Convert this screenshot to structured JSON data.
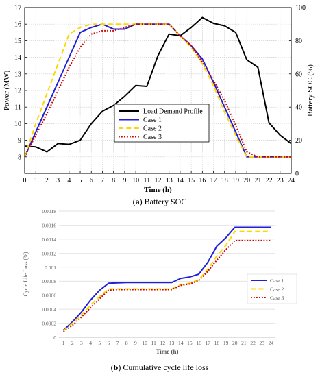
{
  "chart_data": [
    {
      "type": "line",
      "caption_prefix": "(",
      "caption_letter": "a",
      "caption_text": ") Battery SOC",
      "xlabel": "Time (h)",
      "ylabel_left": "Power (MW)",
      "ylabel_right": "Battery SOC (%)",
      "xlim": [
        0,
        24
      ],
      "ylim_left": [
        7,
        17
      ],
      "ylim_right": [
        0,
        100
      ],
      "x_ticks": [
        0,
        1,
        2,
        3,
        4,
        5,
        6,
        7,
        8,
        9,
        10,
        11,
        12,
        13,
        14,
        15,
        16,
        17,
        18,
        19,
        20,
        21,
        22,
        23,
        24
      ],
      "y_left_ticks": [
        8,
        9,
        10,
        11,
        12,
        13,
        14,
        15,
        16,
        17
      ],
      "y_right_ticks": [
        0,
        20,
        40,
        60,
        80,
        100
      ],
      "grid": true,
      "legend_position": "center-right",
      "x": [
        0,
        1,
        2,
        3,
        4,
        5,
        6,
        7,
        8,
        9,
        10,
        11,
        12,
        13,
        14,
        15,
        16,
        17,
        18,
        19,
        20,
        21,
        22,
        23,
        24
      ],
      "series": [
        {
          "name": "Load Demand Profile",
          "axis": "left",
          "color": "#000000",
          "dash": "solid",
          "values": [
            8.65,
            8.6,
            8.3,
            8.8,
            8.75,
            9.0,
            10.0,
            10.75,
            11.1,
            11.65,
            12.3,
            12.25,
            14.1,
            15.4,
            15.3,
            15.8,
            16.4,
            16.05,
            15.9,
            15.5,
            13.85,
            13.4,
            10.05,
            9.3,
            8.8
          ]
        },
        {
          "name": "Case 1",
          "axis": "right",
          "color": "#1f1fd6",
          "dash": "solid",
          "values": [
            10,
            25,
            40,
            55,
            70,
            85,
            88,
            90,
            87,
            87,
            90,
            90,
            90,
            90,
            83,
            77,
            69,
            55,
            40,
            25,
            10,
            10,
            10,
            10,
            10
          ]
        },
        {
          "name": "Case 2",
          "axis": "right",
          "color": "#ffd700",
          "dash": "dashed",
          "values": [
            10,
            30,
            48,
            66,
            84,
            88,
            90,
            90,
            90,
            90,
            90,
            90,
            90,
            90,
            83,
            76,
            66,
            53,
            37,
            23,
            10,
            10,
            10,
            10,
            10
          ]
        },
        {
          "name": "Case 3",
          "axis": "right",
          "color": "#cc0000",
          "dash": "dotted",
          "values": [
            10,
            23,
            36,
            50,
            64,
            76,
            84,
            86,
            86,
            88,
            90,
            90,
            90,
            90,
            83,
            77,
            67,
            56,
            44,
            29,
            13,
            10,
            10,
            10,
            10
          ]
        }
      ]
    },
    {
      "type": "line",
      "caption_prefix": "(",
      "caption_letter": "b",
      "caption_text": ") Cumulative cycle life loss",
      "xlabel": "Time (h)",
      "ylabel": "Cycle Life Loss (%)",
      "xlim": [
        1,
        24
      ],
      "ylim": [
        0,
        0.0018
      ],
      "x_ticks": [
        1,
        2,
        3,
        4,
        5,
        6,
        7,
        8,
        9,
        10,
        11,
        12,
        13,
        14,
        15,
        16,
        17,
        18,
        19,
        20,
        21,
        22,
        23,
        24
      ],
      "y_ticks": [
        "0",
        "0.0002",
        "0.0004",
        "0.0006",
        "0.0008",
        "0.001",
        "0.0012",
        "0.0014",
        "0.0016",
        "0.0018"
      ],
      "y_tick_values": [
        0,
        0.0002,
        0.0004,
        0.0006,
        0.0008,
        0.001,
        0.0012,
        0.0014,
        0.0016,
        0.0018
      ],
      "grid": true,
      "legend_position": "right",
      "x": [
        1,
        2,
        3,
        4,
        5,
        6,
        7,
        8,
        9,
        10,
        11,
        12,
        13,
        14,
        15,
        16,
        17,
        18,
        19,
        20,
        21,
        22,
        23,
        24
      ],
      "series": [
        {
          "name": "Case 1",
          "color": "#1f1fd6",
          "dash": "solid",
          "values": [
            0.0001,
            0.00022,
            0.00036,
            0.00053,
            0.00067,
            0.00077,
            0.000775,
            0.00078,
            0.00078,
            0.00078,
            0.00078,
            0.00078,
            0.00078,
            0.00084,
            0.00086,
            0.0009,
            0.00107,
            0.0013,
            0.00142,
            0.00157,
            0.00157,
            0.00157,
            0.00157,
            0.00157
          ]
        },
        {
          "name": "Case 2",
          "color": "#ffd700",
          "dash": "dashed",
          "values": [
            9e-05,
            0.0002,
            0.00032,
            0.00046,
            0.00058,
            0.00069,
            0.00069,
            0.00069,
            0.00069,
            0.00069,
            0.00069,
            0.00069,
            0.00069,
            0.00075,
            0.00077,
            0.00082,
            0.00097,
            0.00116,
            0.00131,
            0.00151,
            0.00151,
            0.00151,
            0.00151,
            0.00151
          ]
        },
        {
          "name": "Case 3",
          "color": "#cc0000",
          "dash": "dotted",
          "values": [
            8e-05,
            0.00017,
            0.00029,
            0.00042,
            0.00055,
            0.00067,
            0.00068,
            0.00068,
            0.00068,
            0.00068,
            0.00068,
            0.00068,
            0.00068,
            0.00074,
            0.00076,
            0.00081,
            0.00094,
            0.0011,
            0.00125,
            0.00138,
            0.00138,
            0.00138,
            0.00138,
            0.00138
          ]
        }
      ]
    }
  ]
}
